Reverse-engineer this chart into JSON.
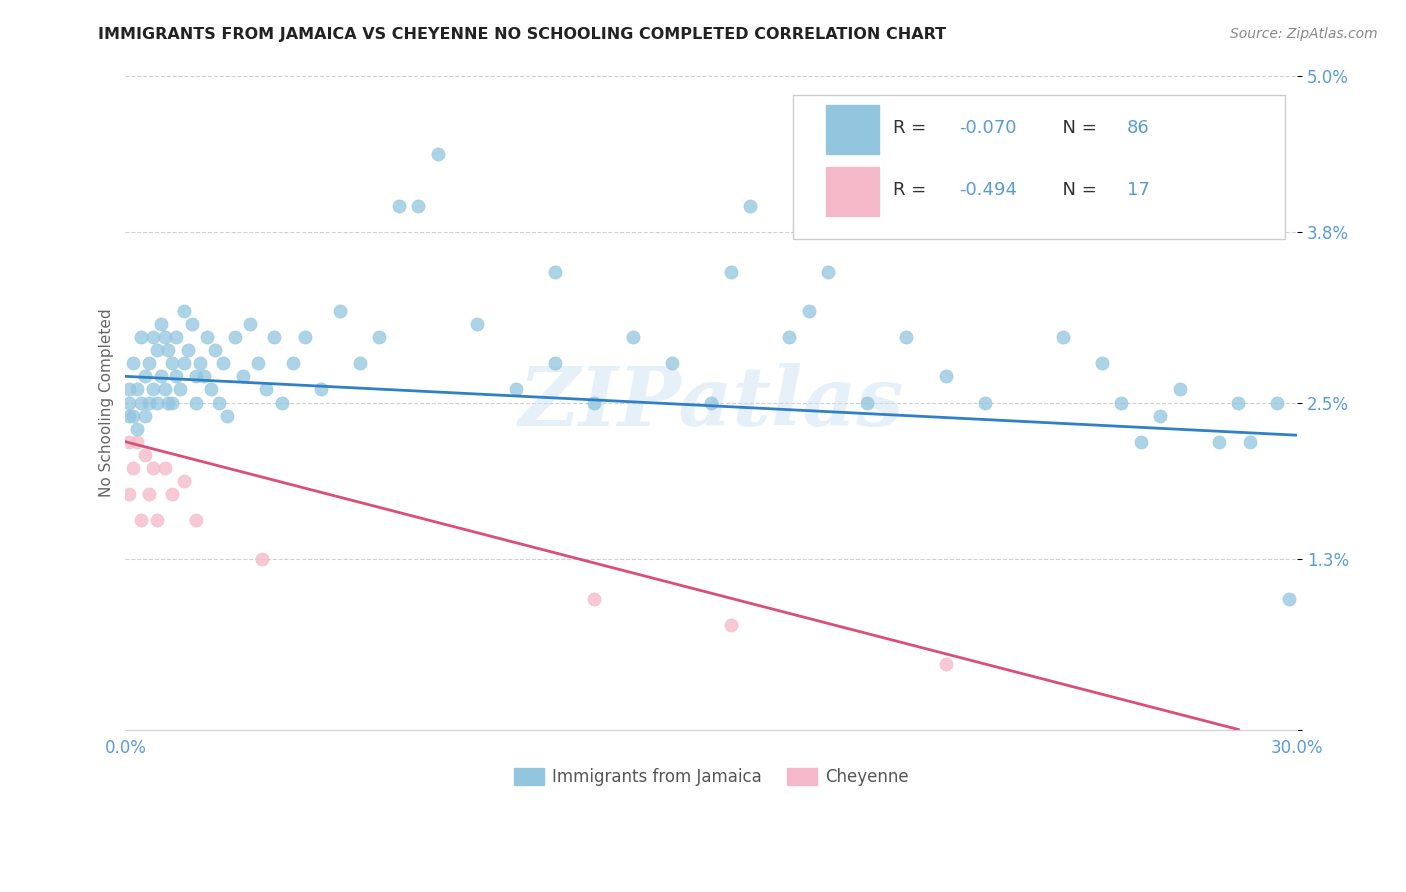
{
  "title": "IMMIGRANTS FROM JAMAICA VS CHEYENNE NO SCHOOLING COMPLETED CORRELATION CHART",
  "source_text": "Source: ZipAtlas.com",
  "ylabel": "No Schooling Completed",
  "legend_label1": "Immigrants from Jamaica",
  "legend_label2": "Cheyenne",
  "r1": "-0.070",
  "n1": "86",
  "r2": "-0.494",
  "n2": "17",
  "xlim": [
    0.0,
    0.3
  ],
  "ylim": [
    0.0,
    0.05
  ],
  "xticks": [
    0.0,
    0.05,
    0.1,
    0.15,
    0.2,
    0.25,
    0.3
  ],
  "xticklabels": [
    "0.0%",
    "",
    "",
    "",
    "",
    "",
    "30.0%"
  ],
  "yticks": [
    0.0,
    0.013,
    0.025,
    0.038,
    0.05
  ],
  "yticklabels": [
    "",
    "1.3%",
    "2.5%",
    "3.8%",
    "5.0%"
  ],
  "color_blue": "#92c5de",
  "color_pink": "#f4b8c8",
  "color_trendline_blue": "#3080c8",
  "color_trendline_pink": "#d94f78",
  "color_axis_label": "#5b9bd5",
  "color_title": "#222222",
  "background": "#ffffff",
  "watermark": "ZIPatlas",
  "blue_scatter_x": [
    0.001,
    0.001,
    0.001,
    0.002,
    0.002,
    0.003,
    0.003,
    0.004,
    0.004,
    0.005,
    0.005,
    0.006,
    0.006,
    0.007,
    0.007,
    0.008,
    0.008,
    0.009,
    0.009,
    0.01,
    0.01,
    0.011,
    0.011,
    0.012,
    0.012,
    0.013,
    0.013,
    0.014,
    0.015,
    0.015,
    0.016,
    0.017,
    0.018,
    0.018,
    0.019,
    0.02,
    0.021,
    0.022,
    0.023,
    0.024,
    0.025,
    0.026,
    0.028,
    0.03,
    0.032,
    0.034,
    0.036,
    0.038,
    0.04,
    0.043,
    0.046,
    0.05,
    0.055,
    0.06,
    0.065,
    0.07,
    0.08,
    0.09,
    0.1,
    0.11,
    0.12,
    0.13,
    0.14,
    0.15,
    0.155,
    0.16,
    0.17,
    0.175,
    0.18,
    0.19,
    0.2,
    0.21,
    0.22,
    0.24,
    0.25,
    0.255,
    0.26,
    0.265,
    0.27,
    0.28,
    0.285,
    0.288,
    0.295,
    0.298,
    0.11,
    0.075
  ],
  "blue_scatter_y": [
    0.026,
    0.025,
    0.024,
    0.028,
    0.024,
    0.026,
    0.023,
    0.03,
    0.025,
    0.027,
    0.024,
    0.028,
    0.025,
    0.03,
    0.026,
    0.029,
    0.025,
    0.031,
    0.027,
    0.03,
    0.026,
    0.029,
    0.025,
    0.028,
    0.025,
    0.03,
    0.027,
    0.026,
    0.032,
    0.028,
    0.029,
    0.031,
    0.027,
    0.025,
    0.028,
    0.027,
    0.03,
    0.026,
    0.029,
    0.025,
    0.028,
    0.024,
    0.03,
    0.027,
    0.031,
    0.028,
    0.026,
    0.03,
    0.025,
    0.028,
    0.03,
    0.026,
    0.032,
    0.028,
    0.03,
    0.04,
    0.044,
    0.031,
    0.026,
    0.028,
    0.025,
    0.03,
    0.028,
    0.025,
    0.035,
    0.04,
    0.03,
    0.032,
    0.035,
    0.025,
    0.03,
    0.027,
    0.025,
    0.03,
    0.028,
    0.025,
    0.022,
    0.024,
    0.026,
    0.022,
    0.025,
    0.022,
    0.025,
    0.01,
    0.035,
    0.04
  ],
  "pink_scatter_x": [
    0.001,
    0.001,
    0.002,
    0.003,
    0.004,
    0.005,
    0.006,
    0.007,
    0.008,
    0.01,
    0.012,
    0.015,
    0.018,
    0.035,
    0.12,
    0.155,
    0.21
  ],
  "pink_scatter_y": [
    0.022,
    0.018,
    0.02,
    0.022,
    0.016,
    0.021,
    0.018,
    0.02,
    0.016,
    0.02,
    0.018,
    0.019,
    0.016,
    0.013,
    0.01,
    0.008,
    0.005
  ],
  "blue_trend_x": [
    0.0,
    0.3
  ],
  "blue_trend_y": [
    0.027,
    0.0225
  ],
  "pink_trend_x": [
    0.0,
    0.285
  ],
  "pink_trend_y": [
    0.022,
    0.0
  ],
  "grid_color": "#d0d0d0",
  "spine_color": "#d0d0d0"
}
